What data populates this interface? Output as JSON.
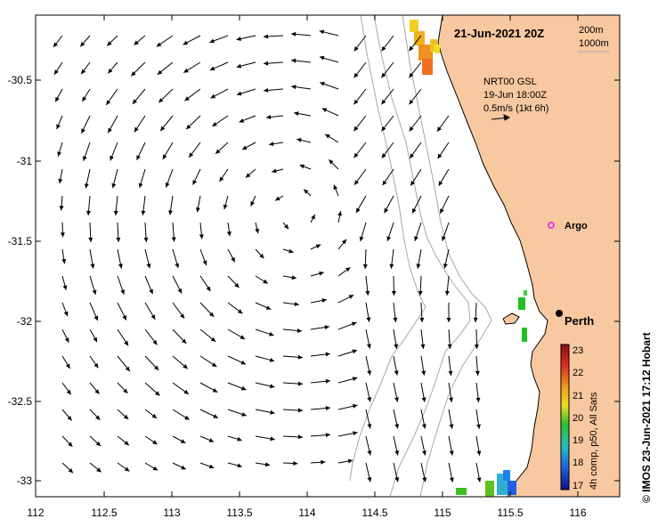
{
  "header": {
    "date_label": "21-Jun-2021 20Z",
    "contour_200": "200m",
    "contour_1000": "1000m"
  },
  "vector_legend": {
    "source": "NRT00 GSL",
    "time": "19-Jun 18:00Z",
    "scale": "0.5m/s (1kt 6h)"
  },
  "places": {
    "argo_label": "Argo",
    "perth_label": "Perth"
  },
  "axes": {
    "x_ticks": [
      "112",
      "112.5",
      "113",
      "113.5",
      "114",
      "114.5",
      "115",
      "115.5",
      "116"
    ],
    "y_ticks": [
      "-30.5",
      "-31",
      "-31.5",
      "-32",
      "-32.5",
      "-33"
    ]
  },
  "colorbar": {
    "label": "4h comp, p50, All Sats",
    "ticks": [
      "23",
      "22",
      "21",
      "20",
      "19",
      "18",
      "17"
    ]
  },
  "credit": "© IMOS 23-Jun-2021 17:12 Hobart",
  "colors": {
    "land": "#F8C8A0",
    "arrow": "#000000",
    "isobath": "#A8A8A8",
    "argo": "#E040E0"
  }
}
